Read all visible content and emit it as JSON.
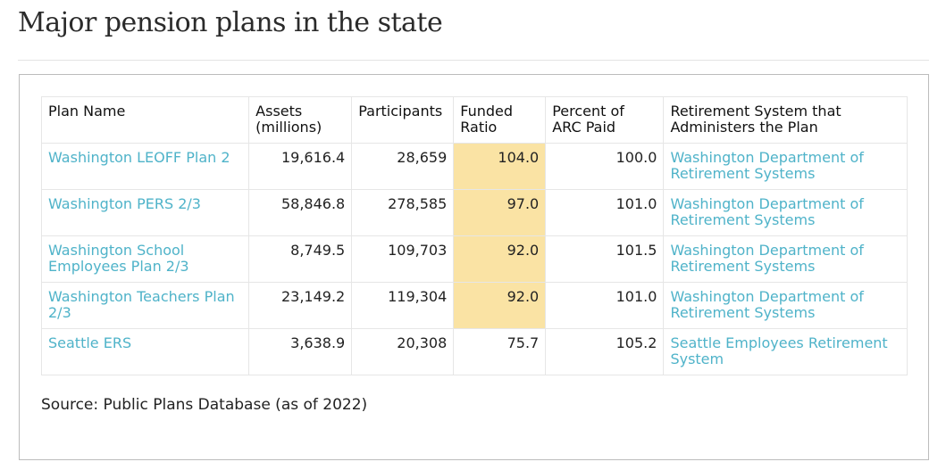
{
  "page": {
    "title": "Major pension plans in the state"
  },
  "table": {
    "headers": [
      "Plan Name",
      "Assets\n(millions)",
      "Participants",
      "Funded\nRatio",
      "Percent of\nARC Paid",
      "Retirement System that\nAdministers the Plan"
    ],
    "rows": [
      {
        "plan_name": "Washington LEOFF Plan 2",
        "assets": "19,616.4",
        "participants": "28,659",
        "funded_ratio": "104.0",
        "arc_paid": "100.0",
        "system": "Washington Department of Retirement Systems",
        "highlight": true
      },
      {
        "plan_name": "Washington PERS 2/3",
        "assets": "58,846.8",
        "participants": "278,585",
        "funded_ratio": "97.0",
        "arc_paid": "101.0",
        "system": "Washington Department of Retirement Systems",
        "highlight": true
      },
      {
        "plan_name": "Washington School Employees Plan 2/3",
        "assets": "8,749.5",
        "participants": "109,703",
        "funded_ratio": "92.0",
        "arc_paid": "101.5",
        "system": "Washington Department of Retirement Systems",
        "highlight": true
      },
      {
        "plan_name": "Washington Teachers Plan 2/3",
        "assets": "23,149.2",
        "participants": "119,304",
        "funded_ratio": "92.0",
        "arc_paid": "101.0",
        "system": "Washington Department of Retirement Systems",
        "highlight": true
      },
      {
        "plan_name": "Seattle ERS",
        "assets": "3,638.9",
        "participants": "20,308",
        "funded_ratio": "75.7",
        "arc_paid": "105.2",
        "system": "Seattle Employees Retirement System",
        "highlight": false
      }
    ]
  },
  "source": "Source: Public Plans Database (as of 2022)",
  "colors": {
    "link": "#4fb3c9",
    "highlight": "#fae3a4",
    "border": "#e6e6e6"
  }
}
